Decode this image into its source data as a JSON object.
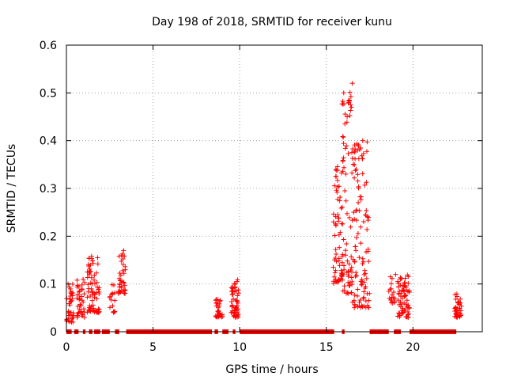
{
  "chart_data": {
    "type": "scatter",
    "title": "Day 198 of 2018, SRMTID for receiver kunu",
    "xlabel": "GPS time / hours",
    "ylabel": "SRMTID / TECUs",
    "xlim": [
      0,
      24
    ],
    "ylim": [
      0,
      0.6
    ],
    "x_ticks": [
      0,
      5,
      10,
      15,
      20
    ],
    "x_tick_labels": [
      "0",
      "5",
      "10",
      "15",
      "20"
    ],
    "y_ticks": [
      0,
      0.1,
      0.2,
      0.3,
      0.4,
      0.5,
      0.6
    ],
    "y_tick_labels": [
      "0",
      "0.1",
      "0.2",
      "0.3",
      "0.4",
      "0.5",
      "0.6"
    ],
    "grid": true,
    "marker": "plus",
    "marker_color": "#ff0000",
    "clusters": [
      {
        "x": [
          0.0,
          0.45
        ],
        "y": [
          0.02,
          0.1
        ],
        "n": 40
      },
      {
        "x": [
          0.6,
          1.05
        ],
        "y": [
          0.03,
          0.11
        ],
        "n": 40
      },
      {
        "x": [
          1.2,
          1.9
        ],
        "y": [
          0.04,
          0.16
        ],
        "n": 70
      },
      {
        "x": [
          2.5,
          2.8
        ],
        "y": [
          0.04,
          0.11
        ],
        "n": 18
      },
      {
        "x": [
          3.0,
          3.4
        ],
        "y": [
          0.08,
          0.17
        ],
        "n": 40
      },
      {
        "x": [
          8.6,
          9.0
        ],
        "y": [
          0.03,
          0.07
        ],
        "n": 35
      },
      {
        "x": [
          9.5,
          9.95
        ],
        "y": [
          0.03,
          0.11
        ],
        "n": 55
      },
      {
        "x": [
          15.4,
          15.9
        ],
        "y": [
          0.1,
          0.36
        ],
        "n": 60
      },
      {
        "x": [
          15.9,
          16.5
        ],
        "y": [
          0.08,
          0.52
        ],
        "n": 80
      },
      {
        "x": [
          16.5,
          17.5
        ],
        "y": [
          0.05,
          0.4
        ],
        "n": 110
      },
      {
        "x": [
          18.6,
          19.0
        ],
        "y": [
          0.06,
          0.12
        ],
        "n": 18
      },
      {
        "x": [
          19.1,
          19.8
        ],
        "y": [
          0.03,
          0.12
        ],
        "n": 70
      },
      {
        "x": [
          22.4,
          22.8
        ],
        "y": [
          0.03,
          0.08
        ],
        "n": 40
      }
    ],
    "spikes": [
      [
        15.55,
        0.34
      ],
      [
        16.2,
        0.45
      ],
      [
        16.3,
        0.48
      ],
      [
        16.5,
        0.52
      ],
      [
        16.45,
        0.47
      ],
      [
        16.8,
        0.38
      ],
      [
        17.1,
        0.4
      ],
      [
        1.8,
        0.155
      ],
      [
        3.3,
        0.17
      ],
      [
        9.85,
        0.105
      ],
      [
        0.1,
        0.1
      ],
      [
        19.0,
        0.12
      ]
    ],
    "zero_segments": [
      [
        0.0,
        0.3
      ],
      [
        0.45,
        0.7
      ],
      [
        0.95,
        1.1
      ],
      [
        1.3,
        1.5
      ],
      [
        1.6,
        1.95
      ],
      [
        2.05,
        2.5
      ],
      [
        2.8,
        3.05
      ],
      [
        3.45,
        8.4
      ],
      [
        8.55,
        8.75
      ],
      [
        9.0,
        9.35
      ],
      [
        9.6,
        9.75
      ],
      [
        10.0,
        15.45
      ],
      [
        15.9,
        16.05
      ],
      [
        17.5,
        18.6
      ],
      [
        18.9,
        19.3
      ],
      [
        19.8,
        22.5
      ]
    ]
  }
}
